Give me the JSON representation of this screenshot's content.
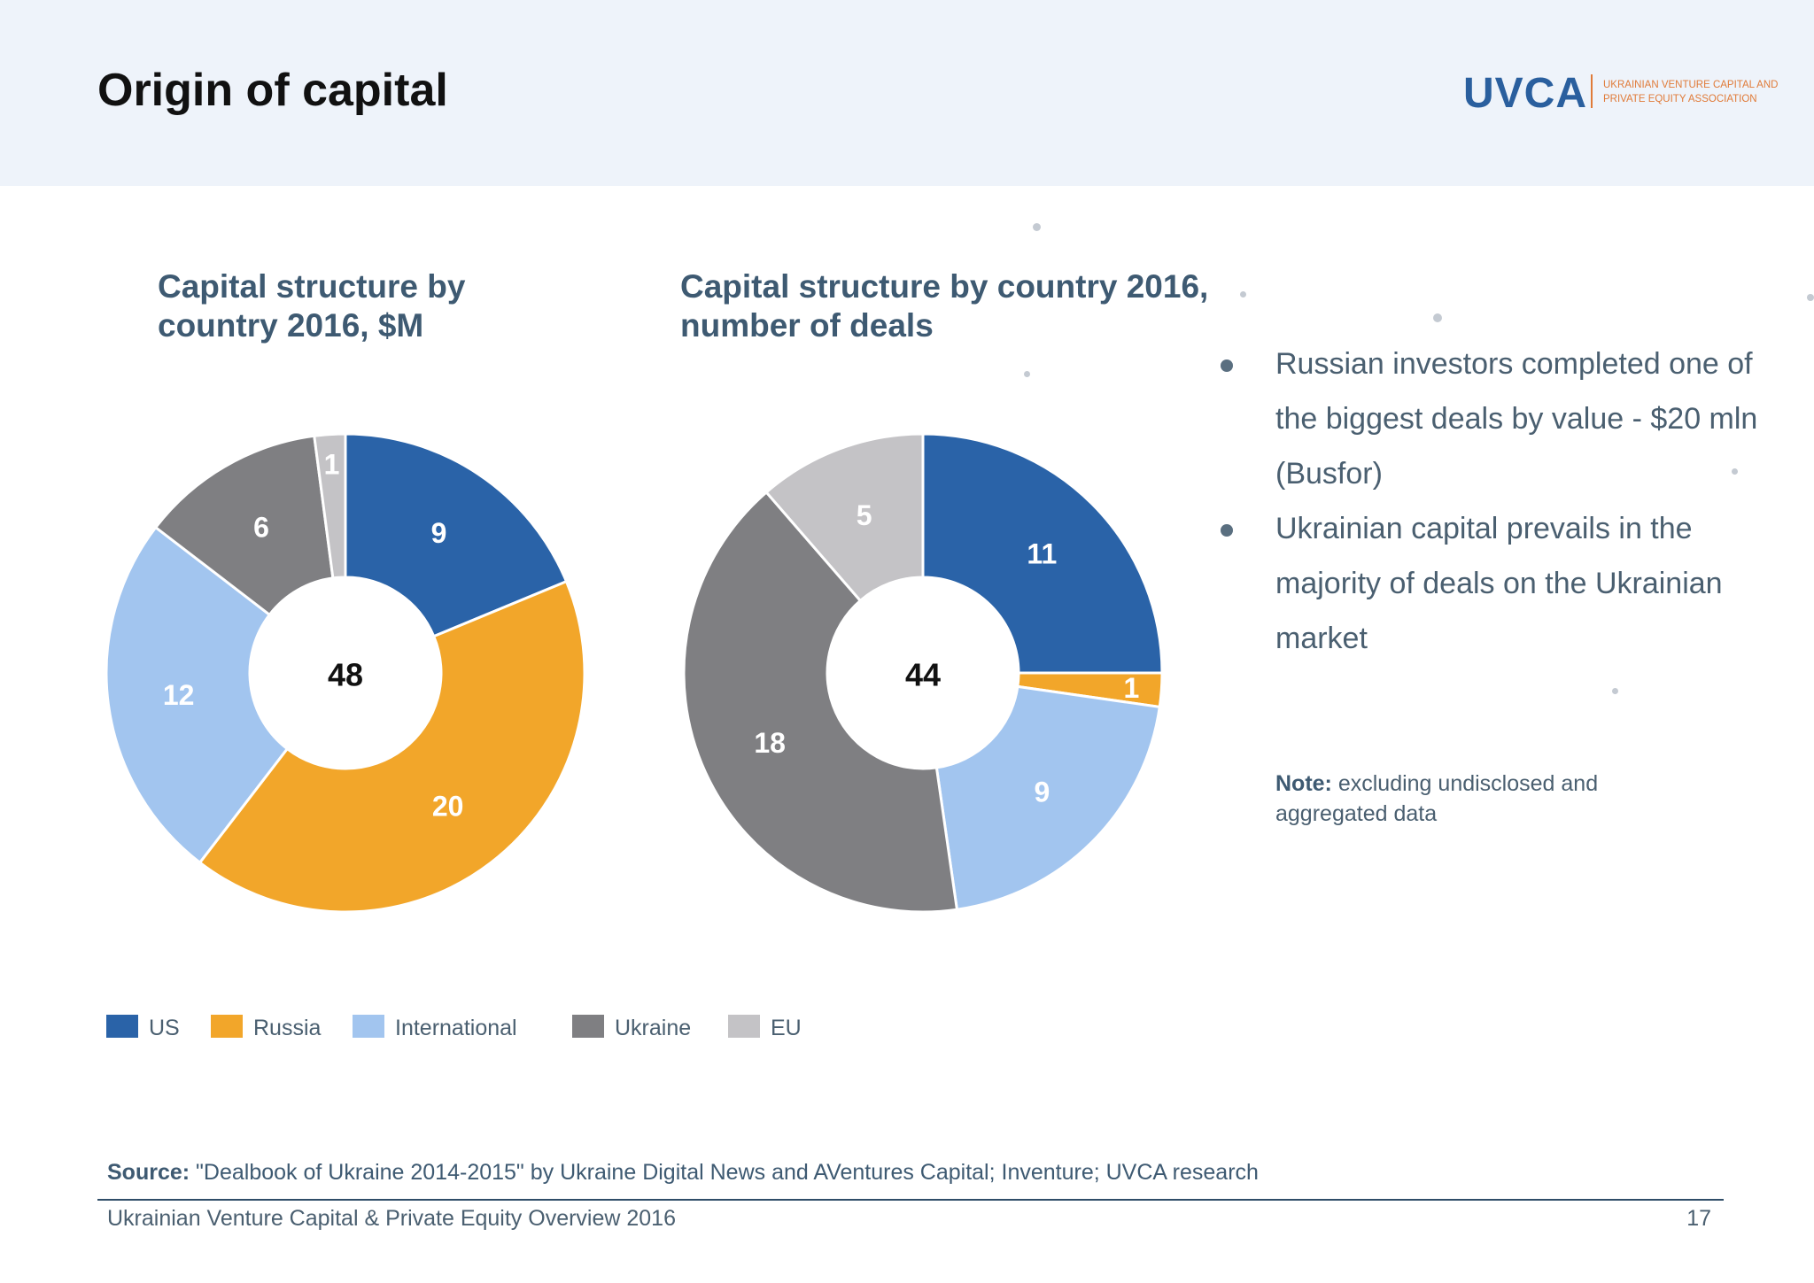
{
  "page": {
    "title": "Origin of capital",
    "logo": {
      "mark": "UVCA",
      "subtitle": "Ukrainian venture capital and private equity association"
    }
  },
  "colors": {
    "US": "#2a63a8",
    "Russia": "#f2a62a",
    "International": "#a2c5ef",
    "Ukraine": "#7f7f82",
    "EU": "#c4c3c6",
    "title_text": "#3e5a72",
    "header_bg": "#eef3fa"
  },
  "chart_data": [
    {
      "type": "pie",
      "style": "donut",
      "title": "Capital structure by country 2016, $M",
      "center_label": "48",
      "slices": [
        {
          "label": "US",
          "value": 9
        },
        {
          "label": "Russia",
          "value": 20
        },
        {
          "label": "International",
          "value": 12
        },
        {
          "label": "Ukraine",
          "value": 6
        },
        {
          "label": "EU",
          "value": 1
        }
      ],
      "legend_position": "bottom-left"
    },
    {
      "type": "pie",
      "style": "donut",
      "title": "Capital structure by country 2016, number of deals",
      "center_label": "44",
      "slices": [
        {
          "label": "US",
          "value": 11
        },
        {
          "label": "Russia",
          "value": 1
        },
        {
          "label": "International",
          "value": 9
        },
        {
          "label": "Ukraine",
          "value": 18
        },
        {
          "label": "EU",
          "value": 5
        }
      ],
      "legend_position": "bottom-left"
    }
  ],
  "legend": {
    "items": [
      {
        "label": "US",
        "color": "#2a63a8"
      },
      {
        "label": "Russia",
        "color": "#f2a62a"
      },
      {
        "label": "International",
        "color": "#a2c5ef"
      },
      {
        "label": "Ukraine",
        "color": "#7f7f82"
      },
      {
        "label": "EU",
        "color": "#c4c3c6"
      }
    ]
  },
  "bullets": [
    "Russian investors completed one of the biggest deals by value -  $20 mln (Busfor)",
    "Ukrainian capital prevails in the majority of deals on the Ukrainian market"
  ],
  "note": {
    "label": "Note:",
    "text": " excluding undisclosed and aggregated data"
  },
  "source": {
    "label": "Source:",
    "text": " \"Dealbook of Ukraine 2014-2015\" by Ukraine Digital News and AVentures Capital; Inventure; UVCA research"
  },
  "footer": {
    "text": "Ukrainian Venture Capital & Private Equity Overview 2016",
    "page_number": "17"
  }
}
